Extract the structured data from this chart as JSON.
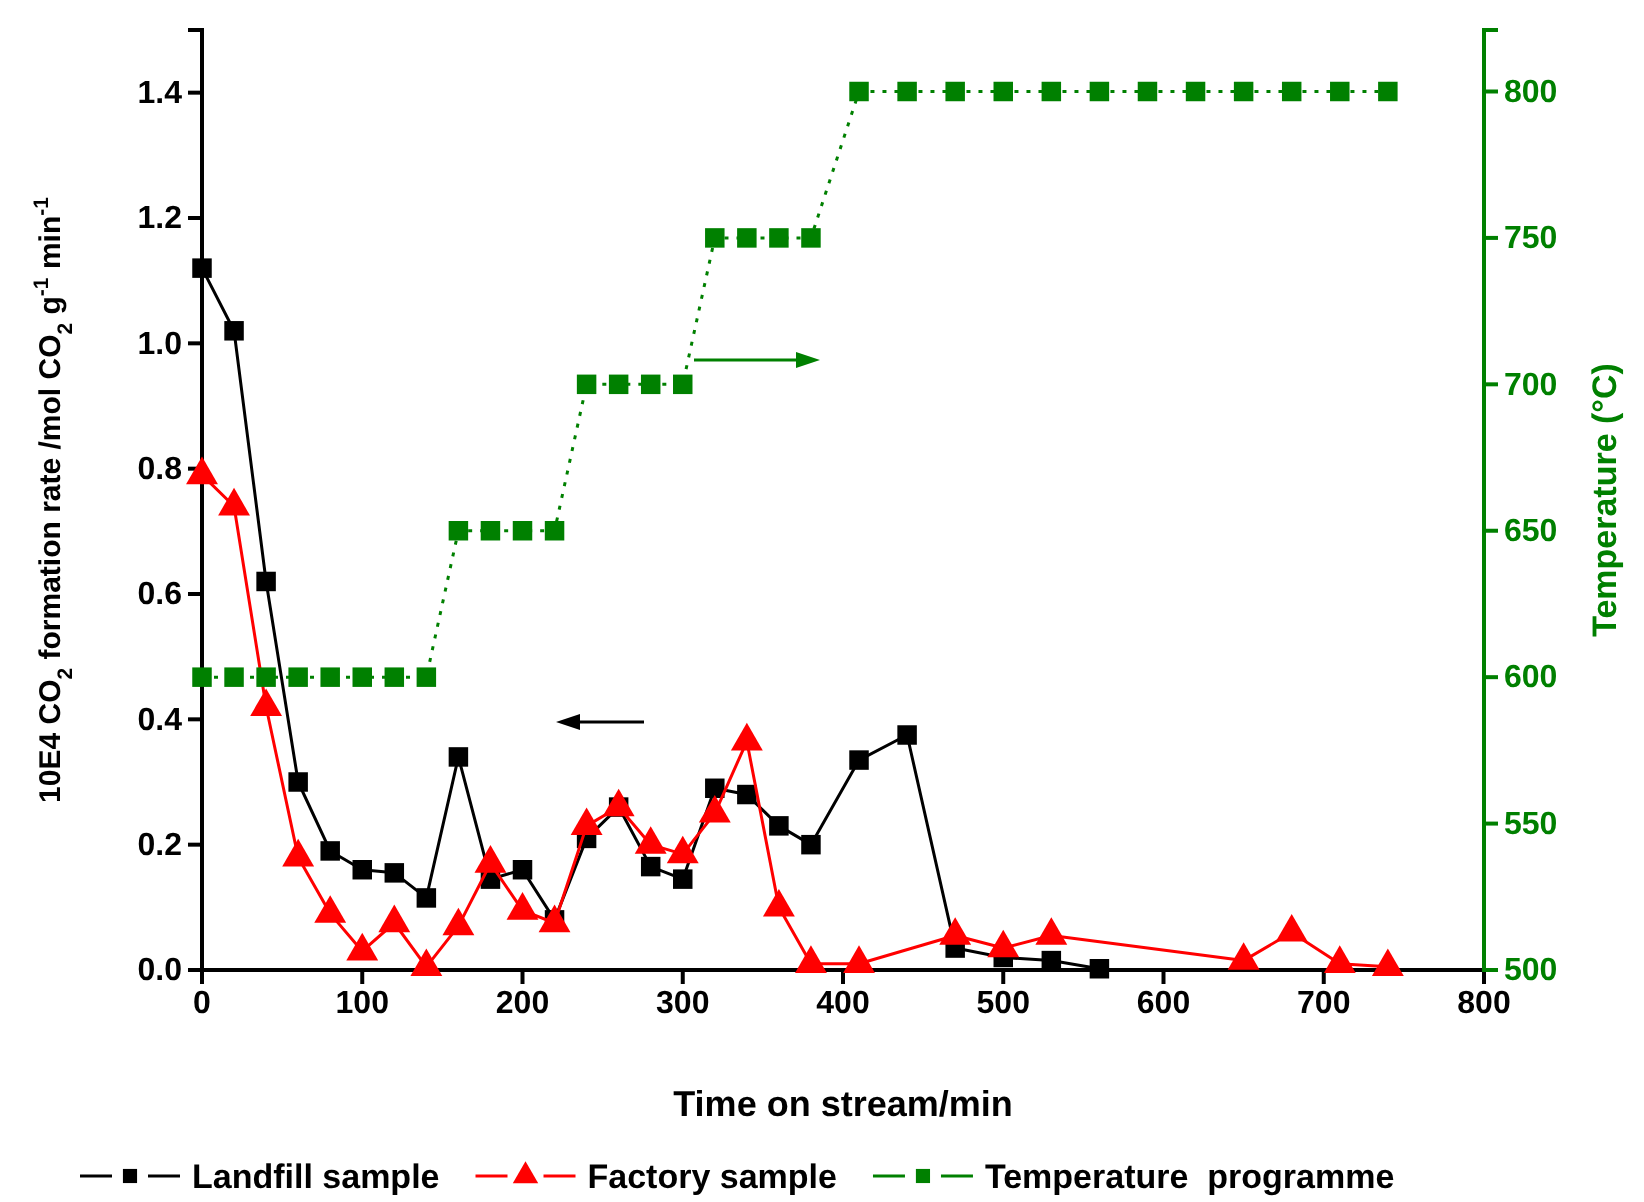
{
  "chart_data": {
    "type": "line",
    "xlabel": "Time on stream/min",
    "ylabel": "10E4 CO$_{2}$ formation rate /mol CO$_{2}$ g$^{-1}$ min$^{-1}$",
    "y2label": "Temperature  (°C)",
    "xlim": [
      0,
      800
    ],
    "xticks": [
      0,
      100,
      200,
      300,
      400,
      500,
      600,
      700,
      800
    ],
    "ylim": [
      0,
      1.5
    ],
    "yticks": [
      {
        "value": 0,
        "label": "0.0"
      },
      {
        "value": 0.2,
        "label": "0.2"
      },
      {
        "value": 0.4,
        "label": "0.4"
      },
      {
        "value": 0.6,
        "label": "0.6"
      },
      {
        "value": 0.8,
        "label": "0.8"
      },
      {
        "value": 1,
        "label": "1.0"
      },
      {
        "value": 1.2,
        "label": "1.2"
      },
      {
        "value": 1.4,
        "label": "1.4"
      }
    ],
    "y2lim": [
      500,
      821
    ],
    "y2ticks": [
      500,
      550,
      600,
      650,
      700,
      750,
      800
    ],
    "grid": false,
    "legend": "bottom",
    "series": [
      {
        "name": "Landfill sample",
        "color": "#000000",
        "marker": "square",
        "line_style": "solid",
        "x": [
          0,
          20,
          40,
          60,
          80,
          100,
          120,
          140,
          160,
          180,
          200,
          220,
          240,
          260,
          280,
          300,
          320,
          340,
          360,
          380,
          410,
          440,
          470,
          500,
          530,
          560
        ],
        "values": [
          1.12,
          1.02,
          0.62,
          0.3,
          0.19,
          0.16,
          0.155,
          0.115,
          0.34,
          0.145,
          0.16,
          0.08,
          0.21,
          0.26,
          0.165,
          0.145,
          0.29,
          0.28,
          0.23,
          0.2,
          0.335,
          0.375,
          0.035,
          0.02,
          0.015,
          0.002
        ]
      },
      {
        "name": "Factory sample",
        "color": "#ff0000",
        "marker": "triangle",
        "line_style": "solid",
        "x": [
          0,
          20,
          40,
          60,
          80,
          100,
          120,
          140,
          160,
          180,
          200,
          220,
          240,
          260,
          280,
          300,
          320,
          340,
          360,
          380,
          410,
          470,
          500,
          530,
          650,
          680,
          710,
          740
        ],
        "values": [
          0.79,
          0.74,
          0.42,
          0.18,
          0.09,
          0.03,
          0.075,
          0.005,
          0.07,
          0.17,
          0.095,
          0.075,
          0.23,
          0.26,
          0.2,
          0.185,
          0.25,
          0.365,
          0.1,
          0.01,
          0.01,
          0.055,
          0.035,
          0.055,
          0.015,
          0.06,
          0.01,
          0.005
        ]
      },
      {
        "name": "Temperature  programme",
        "color": "#008000",
        "marker": "square",
        "line_style": "dotted",
        "axis": "y2",
        "x": [
          0,
          20,
          40,
          60,
          80,
          100,
          120,
          140,
          160,
          180,
          200,
          220,
          240,
          260,
          280,
          300,
          320,
          340,
          360,
          380,
          410,
          440,
          470,
          500,
          530,
          560,
          590,
          620,
          650,
          680,
          710,
          740
        ],
        "values": [
          600,
          600,
          600,
          600,
          600,
          600,
          600,
          600,
          650,
          650,
          650,
          650,
          700,
          700,
          700,
          700,
          750,
          750,
          750,
          750,
          800,
          800,
          800,
          800,
          800,
          800,
          800,
          800,
          800,
          800,
          800,
          800
        ]
      }
    ]
  }
}
